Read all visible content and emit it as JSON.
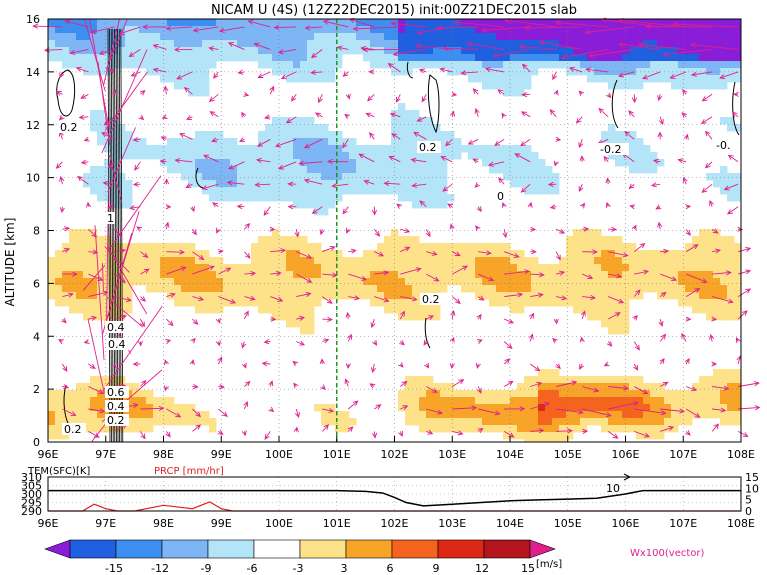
{
  "title": "NICAM U (4S) (12Z22DEC2015) init:00Z21DEC2015 slab",
  "chart_data": [
    {
      "type": "heatmap",
      "title": "NICAM U (4S) (12Z22DEC2015) init:00Z21DEC2015 slab",
      "ylabel": "ALTITUDE [km]",
      "xlim": [
        96,
        108
      ],
      "ylim": [
        0,
        16
      ],
      "x_ticks": [
        "96E",
        "97E",
        "98E",
        "99E",
        "100E",
        "101E",
        "102E",
        "103E",
        "104E",
        "105E",
        "106E",
        "107E",
        "108E"
      ],
      "y_ticks": [
        "0",
        "2",
        "4",
        "6",
        "8",
        "10",
        "12",
        "14",
        "16"
      ],
      "grid": true,
      "marker_line_x": 101,
      "contour_labels": [
        "0.2",
        "0.2",
        "-0.2",
        "-0.",
        "0.2",
        "0.4",
        "0.6",
        "0.4",
        "0.2",
        "0.2",
        "1",
        "0.4",
        "0"
      ],
      "vector_label": "Wx100(vector)",
      "colorbar": {
        "unit": "[m/s]",
        "ticks": [
          "-15",
          "-12",
          "-9",
          "-6",
          "-3",
          "3",
          "6",
          "9",
          "12",
          "15"
        ],
        "colors": [
          "#8a1ed8",
          "#2060e0",
          "#3c8ef0",
          "#7eb6f5",
          "#b4e4f8",
          "#ffffff",
          "#fde28a",
          "#f7a428",
          "#f5641e",
          "#dc2814",
          "#b4141e",
          "#e01e8c"
        ]
      }
    },
    {
      "type": "line",
      "series": [
        {
          "name": "TEM(SFC)[K]",
          "color": "#000000",
          "x": [
            96,
            97,
            98,
            99,
            100,
            101,
            101.5,
            101.8,
            102,
            102.2,
            102.5,
            103,
            103.5,
            104,
            104.5,
            105,
            105.5,
            106,
            106.3,
            108
          ],
          "y": [
            302,
            302,
            302,
            302,
            302,
            302,
            301.5,
            300.5,
            298,
            295,
            293,
            294,
            295,
            296,
            296.5,
            297,
            297.5,
            300,
            302,
            302
          ]
        },
        {
          "name": "PRCP [mm/hr]",
          "color": "#e02020",
          "x": [
            96,
            96.6,
            96.8,
            97,
            97.2,
            97.5,
            98,
            98.5,
            98.8,
            99,
            99.2,
            100,
            101,
            102,
            103,
            104,
            105,
            106,
            107,
            108
          ],
          "y": [
            0,
            0,
            3,
            1,
            0,
            0,
            2.5,
            1,
            4,
            1,
            0,
            0,
            0,
            0,
            0,
            0,
            0,
            0,
            0,
            0
          ]
        }
      ],
      "x_ticks": [
        "96E",
        "97E",
        "98E",
        "99E",
        "100E",
        "101E",
        "102E",
        "103E",
        "104E",
        "105E",
        "106E",
        "107E",
        "108E"
      ],
      "y_left_ticks": [
        "290",
        "295",
        "300",
        "305",
        "310"
      ],
      "y_right_ticks": [
        "0",
        "5",
        "10",
        "15"
      ],
      "annotation": "10",
      "xlim": [
        96,
        108
      ],
      "ylim_left": [
        290,
        310
      ],
      "ylim_right": [
        0,
        15
      ]
    }
  ]
}
